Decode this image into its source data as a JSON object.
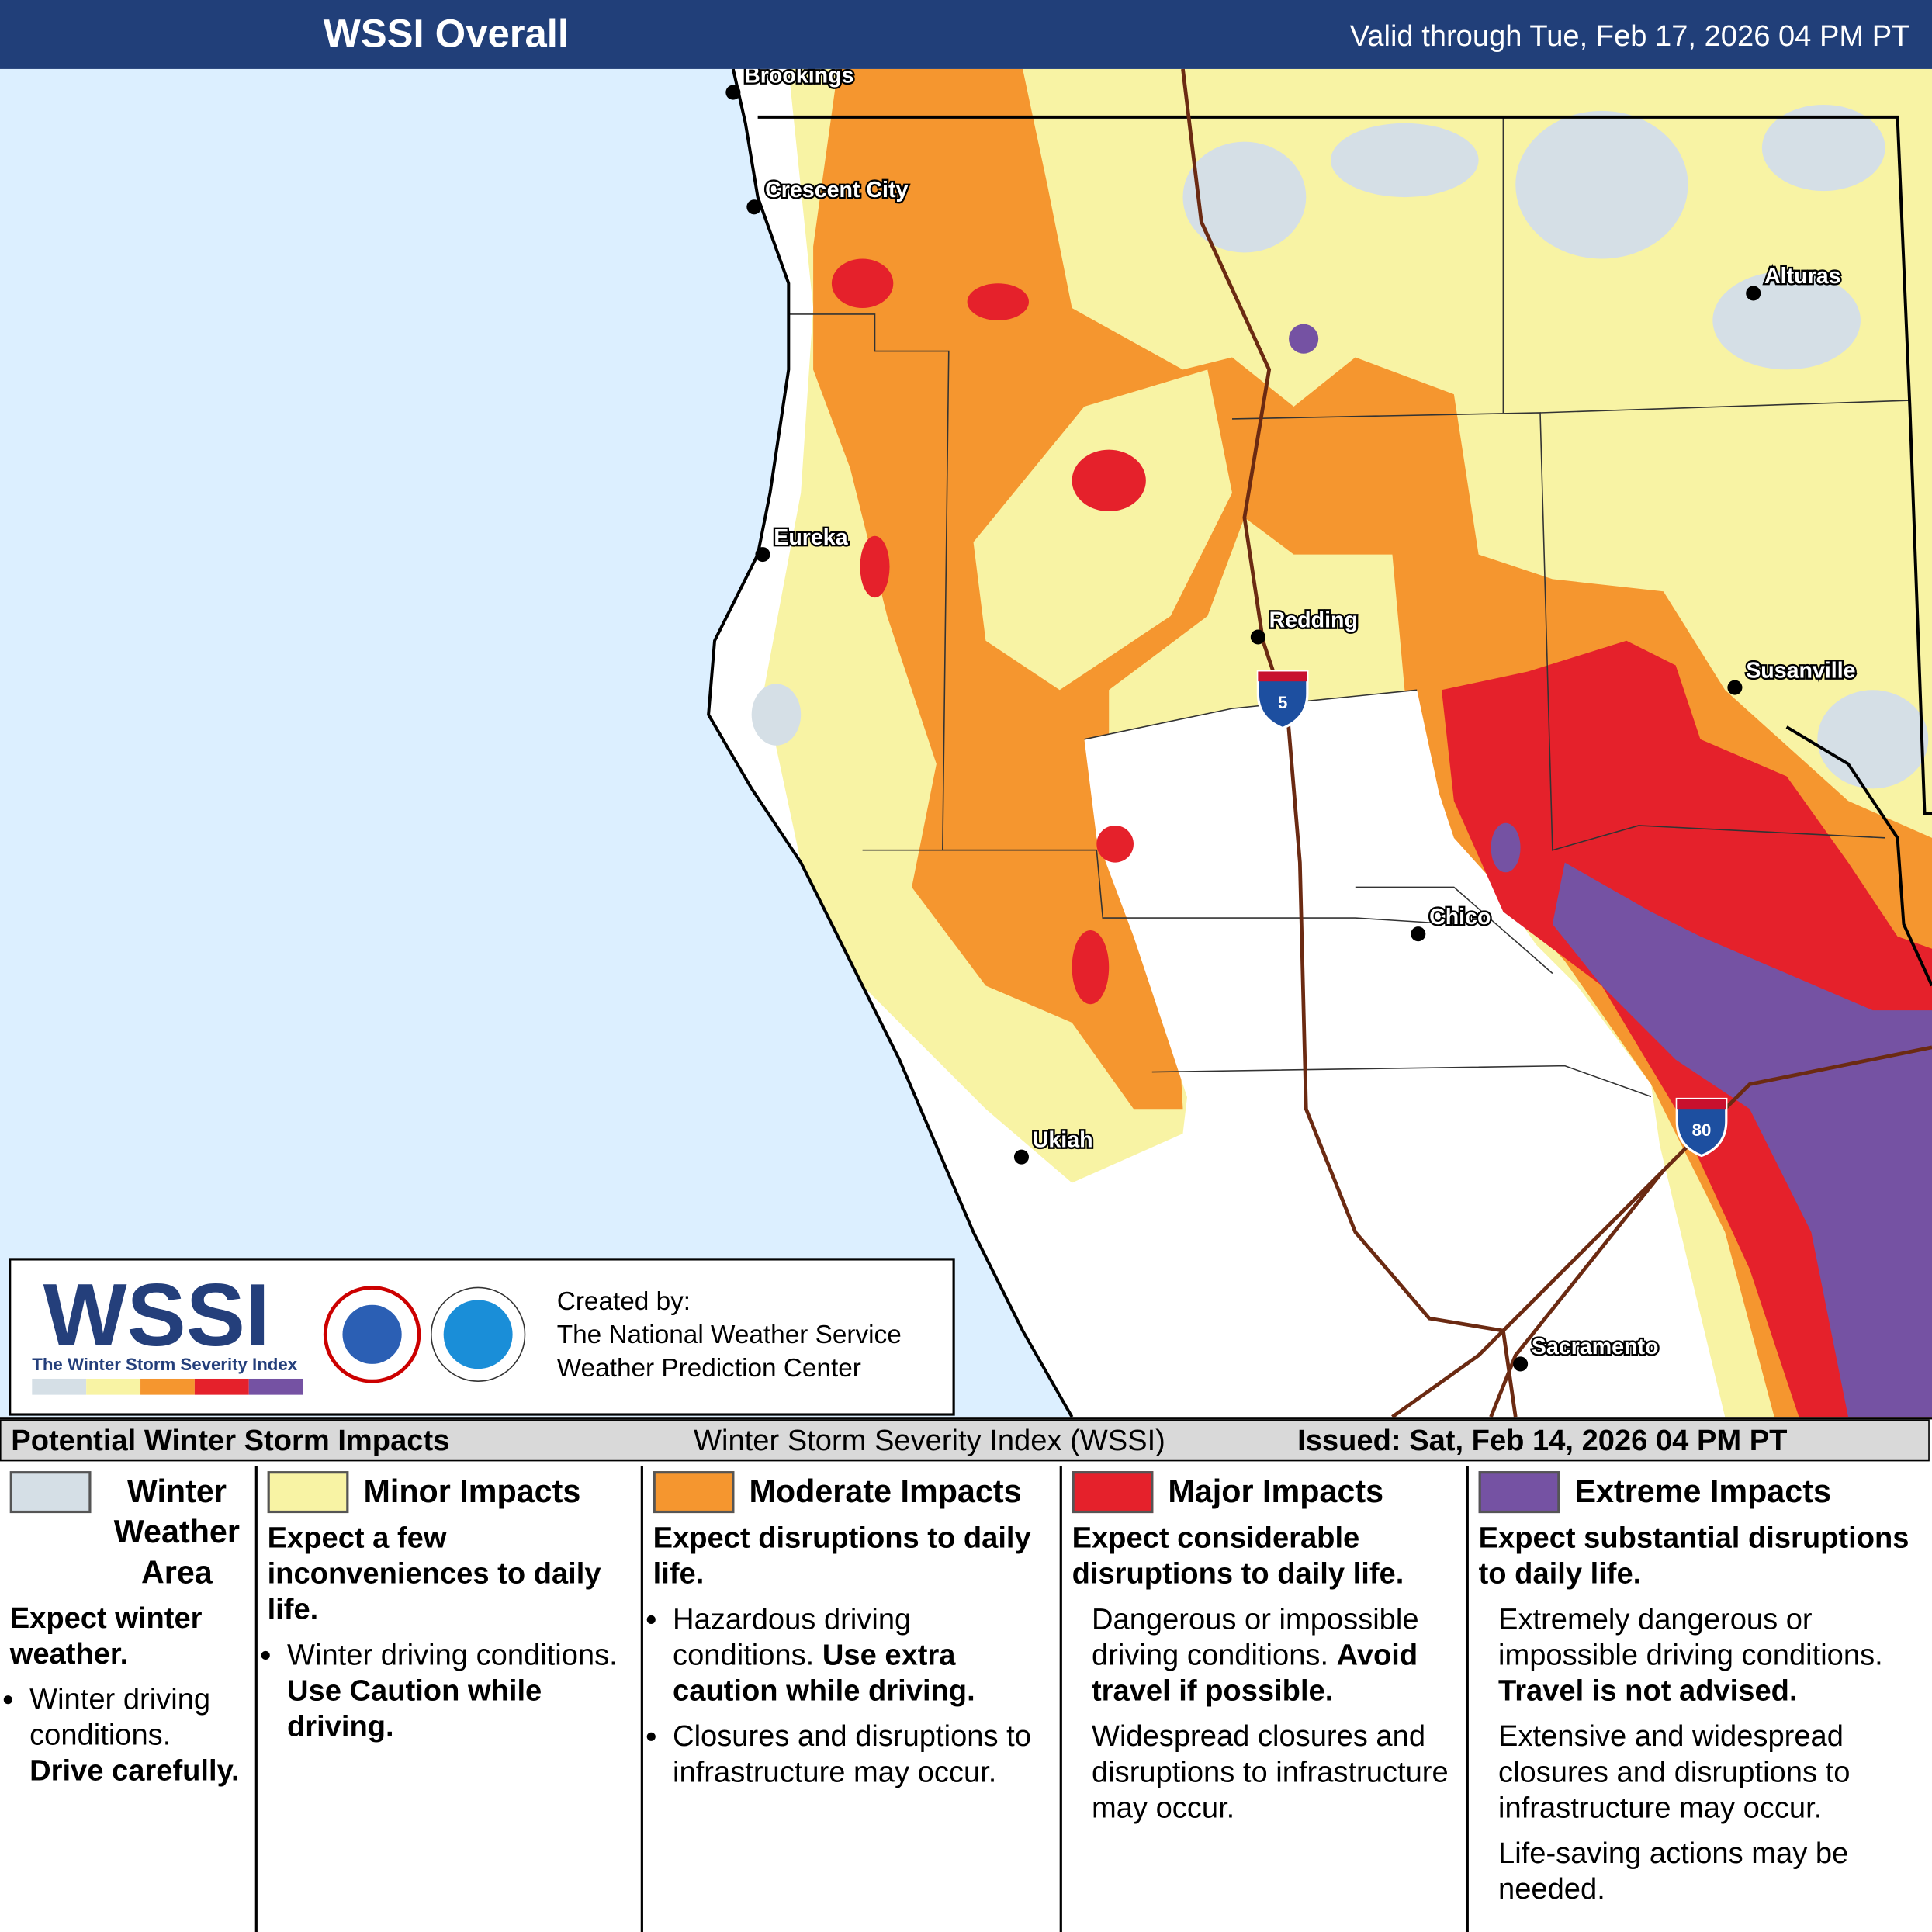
{
  "header": {
    "title": "WSSI Overall",
    "valid": "Valid through Tue, Feb 17, 2026 04 PM PT"
  },
  "map": {
    "cities": [
      {
        "label": "Brookings"
      },
      {
        "label": "Crescent City"
      },
      {
        "label": "Alturas"
      },
      {
        "label": "Eureka"
      },
      {
        "label": "Redding"
      },
      {
        "label": "Susanville"
      },
      {
        "label": "Chico"
      },
      {
        "label": "Ukiah"
      },
      {
        "label": "Sacramento"
      }
    ],
    "highways": [
      "5",
      "80"
    ]
  },
  "logo": {
    "title": "WSSI",
    "subtitle": "The Winter Storm Severity Index",
    "created_by": [
      "Created by:",
      "The National Weather Service",
      "Weather Prediction Center"
    ]
  },
  "legend": {
    "title": "Potential Winter Storm Impacts",
    "subtitle": "Winter Storm Severity Index (WSSI)",
    "issued": "Issued: Sat, Feb 14, 2026 04 PM PT",
    "categories": [
      {
        "name": "Winter Weather Area",
        "color": "#d5dfe6",
        "headline": "Expect winter weather.",
        "bullets": [
          {
            "text": "Winter driving conditions.",
            "emphasis": "Drive carefully."
          }
        ]
      },
      {
        "name": "Minor Impacts",
        "color": "#f8f3a4",
        "headline": "Expect a few inconveniences to daily life.",
        "bullets": [
          {
            "text": "Winter driving conditions.",
            "emphasis": "Use Caution while driving."
          }
        ]
      },
      {
        "name": "Moderate Impacts",
        "color": "#f5962f",
        "headline": "Expect disruptions to daily life.",
        "bullets": [
          {
            "text": "Hazardous driving conditions.",
            "emphasis": "Use extra caution while driving."
          },
          {
            "text": "Closures and disruptions to infrastructure may occur."
          }
        ]
      },
      {
        "name": "Major Impacts",
        "color": "#e5212b",
        "headline": "Expect considerable disruptions to daily life.",
        "paragraphs": [
          {
            "text": "Dangerous or impossible driving conditions.",
            "emphasis": "Avoid travel if possible."
          },
          {
            "text": "Widespread closures and disruptions to infrastructure may occur."
          }
        ]
      },
      {
        "name": "Extreme Impacts",
        "color": "#7552a3",
        "headline": "Expect substantial disruptions to daily life.",
        "paragraphs": [
          {
            "text": "Extremely dangerous or impossible driving conditions.",
            "emphasis": "Travel is not advised."
          },
          {
            "text": "Extensive and widespread closures and disruptions to infrastructure may occur."
          },
          {
            "text": "Life-saving actions may be needed."
          }
        ]
      }
    ]
  }
}
